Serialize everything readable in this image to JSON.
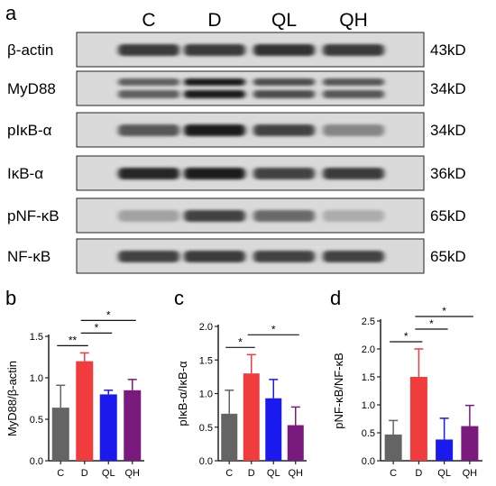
{
  "figure": {
    "panel_a": {
      "letter": "a",
      "lanes": [
        "C",
        "D",
        "QL",
        "QH"
      ],
      "rows": [
        {
          "label": "β-actin",
          "size": "43kD",
          "bands": [
            0.75,
            0.75,
            0.8,
            0.75
          ],
          "double": false
        },
        {
          "label": "MyD88",
          "size": "34kD",
          "bands": [
            0.55,
            0.9,
            0.65,
            0.6
          ],
          "double": true
        },
        {
          "label": "pIκB-α",
          "size": "34kD",
          "bands": [
            0.6,
            0.9,
            0.7,
            0.35
          ],
          "double": false
        },
        {
          "label": "IκB-α",
          "size": "36kD",
          "bands": [
            0.85,
            0.9,
            0.7,
            0.75
          ],
          "double": false
        },
        {
          "label": "pNF-κB",
          "size": "65kD",
          "bands": [
            0.2,
            0.7,
            0.5,
            0.15
          ],
          "double": false
        },
        {
          "label": "NF-κB",
          "size": "65kD",
          "bands": [
            0.7,
            0.75,
            0.7,
            0.7
          ],
          "double": false
        }
      ]
    },
    "colors": {
      "C": "#646464",
      "D": "#f03c3c",
      "QL": "#1a1aee",
      "QH": "#7a1a7e"
    }
  },
  "chart_data": [
    {
      "panel": "b",
      "type": "bar",
      "categories": [
        "C",
        "D",
        "QL",
        "QH"
      ],
      "values": [
        0.64,
        1.2,
        0.8,
        0.85
      ],
      "errors": [
        0.27,
        0.1,
        0.05,
        0.13
      ],
      "ylabel": "MyD88/β-actin",
      "ylim": [
        0,
        1.5
      ],
      "yticks": [
        "0.0",
        "0.5",
        "1.0",
        "1.5"
      ],
      "significance": [
        {
          "from": 0,
          "to": 1,
          "label": "**"
        },
        {
          "from": 1,
          "to": 2,
          "label": "*"
        },
        {
          "from": 1,
          "to": 3,
          "label": "*"
        }
      ]
    },
    {
      "panel": "c",
      "type": "bar",
      "categories": [
        "C",
        "D",
        "QL",
        "QH"
      ],
      "values": [
        0.7,
        1.3,
        0.93,
        0.53
      ],
      "errors": [
        0.35,
        0.28,
        0.28,
        0.27
      ],
      "ylabel": "pIκB-α/IκB-α",
      "ylim": [
        0,
        2.0
      ],
      "yticks": [
        "0.0",
        "0.5",
        "1.0",
        "1.5",
        "2.0"
      ],
      "significance": [
        {
          "from": 0,
          "to": 1,
          "label": "*"
        },
        {
          "from": 1,
          "to": 3,
          "label": "*"
        }
      ]
    },
    {
      "panel": "d",
      "type": "bar",
      "categories": [
        "C",
        "D",
        "QL",
        "QH"
      ],
      "values": [
        0.47,
        1.5,
        0.38,
        0.62
      ],
      "errors": [
        0.25,
        0.5,
        0.38,
        0.37
      ],
      "ylabel": "pNF-κB/NF-κB",
      "ylim": [
        0,
        2.5
      ],
      "yticks": [
        "0.0",
        "0.5",
        "1.0",
        "1.5",
        "2.0",
        "2.5"
      ],
      "significance": [
        {
          "from": 0,
          "to": 1,
          "label": "*"
        },
        {
          "from": 1,
          "to": 2,
          "label": "*"
        },
        {
          "from": 1,
          "to": 3,
          "label": "*"
        }
      ]
    }
  ]
}
